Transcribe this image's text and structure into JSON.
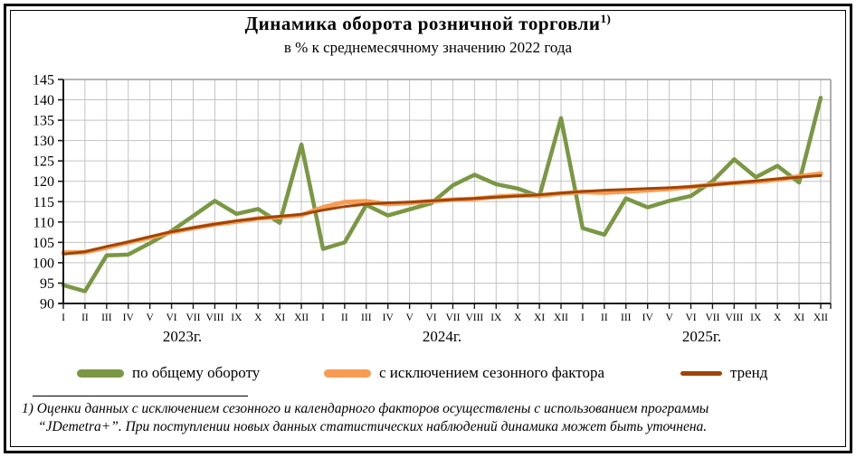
{
  "title": "Динамика оборота розничной торговли",
  "title_sup": "1)",
  "subtitle": "в % к среднемесячному значению 2022 года",
  "colors": {
    "total": "#7A9743",
    "seasonal": "#F89C54",
    "trend": "#A04508",
    "grid": "#C3C3C3",
    "plot_border": "#9B9B9B",
    "axis": "#1a1a1a"
  },
  "legend": [
    {
      "id": "total",
      "label": "по общему  обороту"
    },
    {
      "id": "seasonal",
      "label": "с исключением  сезонного  фактора"
    },
    {
      "id": "trend",
      "label": "тренд"
    }
  ],
  "footnote": {
    "line1": "1) Оценки данных с исключением сезонного и календарного факторов осуществлены с использованием  программы",
    "line2": "“JDemetra+”. При поступлении новых данных статистических наблюдений динамика может быть уточнена."
  },
  "chart_data": {
    "type": "line",
    "title": "Динамика оборота розничной торговли, в % к среднемесячному значению 2022 года",
    "x_months": [
      "I",
      "II",
      "III",
      "IV",
      "V",
      "VI",
      "VII",
      "VIII",
      "IX",
      "X",
      "XI",
      "XII"
    ],
    "x_years": [
      "2023г.",
      "2024г.",
      "2025г."
    ],
    "ylim": [
      90,
      145
    ],
    "y_ticks": [
      90,
      95,
      100,
      105,
      110,
      115,
      120,
      125,
      130,
      135,
      140,
      145
    ],
    "grid": true,
    "legend_position": "bottom",
    "series": [
      {
        "name": "по общему обороту",
        "id": "total",
        "width": 4.5,
        "values": [
          94.5,
          93.0,
          101.8,
          102.0,
          104.8,
          107.8,
          111.5,
          115.2,
          112.0,
          113.2,
          109.8,
          129.0,
          103.4,
          105.0,
          114.2,
          111.6,
          113.1,
          114.6,
          119.0,
          121.6,
          119.3,
          118.2,
          116.3,
          135.5,
          108.5,
          106.9,
          115.8,
          113.6,
          115.2,
          116.4,
          120.0,
          125.4,
          121.0,
          123.8,
          119.7,
          140.5
        ]
      },
      {
        "name": "с исключением сезонного фактора",
        "id": "seasonal",
        "width": 5,
        "values": [
          102.5,
          102.6,
          103.7,
          105.0,
          106.2,
          107.5,
          108.5,
          109.4,
          110.1,
          110.9,
          111.2,
          111.7,
          113.6,
          114.9,
          115.1,
          114.4,
          114.7,
          115.1,
          115.5,
          115.7,
          116.2,
          116.5,
          116.5,
          117.0,
          117.4,
          117.2,
          117.5,
          117.8,
          118.1,
          118.6,
          119.2,
          119.6,
          119.9,
          120.4,
          121.2,
          121.9
        ]
      },
      {
        "name": "тренд",
        "id": "trend",
        "width": 3,
        "values": [
          102.1,
          102.7,
          104.0,
          105.1,
          106.4,
          107.6,
          108.6,
          109.5,
          110.3,
          110.9,
          111.4,
          111.9,
          112.9,
          113.8,
          114.4,
          114.7,
          114.9,
          115.2,
          115.5,
          115.8,
          116.1,
          116.4,
          116.7,
          117.1,
          117.5,
          117.8,
          118.0,
          118.2,
          118.4,
          118.7,
          119.1,
          119.6,
          120.1,
          120.6,
          121.0,
          121.4
        ]
      }
    ]
  }
}
